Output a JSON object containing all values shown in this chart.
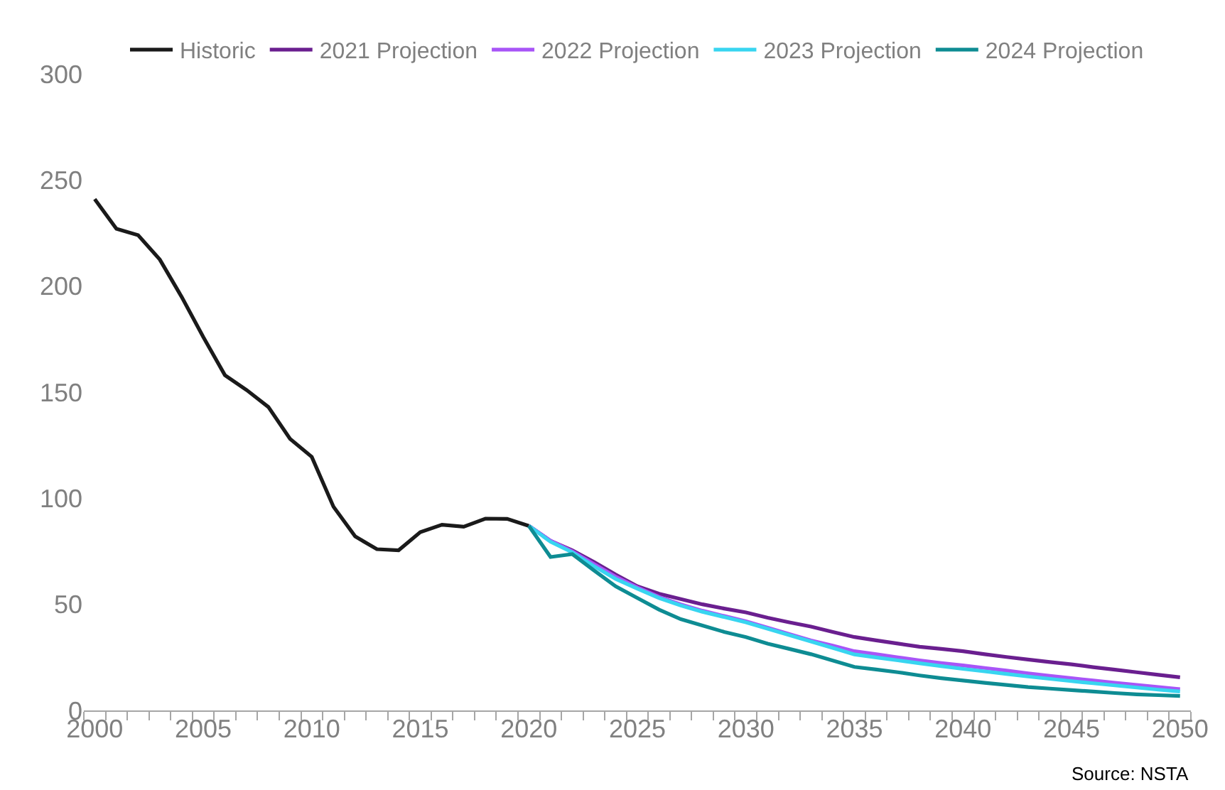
{
  "chart_data": {
    "type": "line",
    "series": [
      {
        "name": "Historic",
        "color": "#1a1a1a",
        "x": [
          2000,
          2001,
          2002,
          2003,
          2004,
          2005,
          2006,
          2007,
          2008,
          2009,
          2010,
          2011,
          2012,
          2013,
          2014,
          2015,
          2016,
          2017,
          2018,
          2019,
          2020
        ],
        "values": [
          241,
          227,
          224,
          212.5,
          195,
          176,
          158,
          151,
          143,
          128,
          119.5,
          96,
          82,
          76,
          75.5,
          84,
          87.5,
          86.6,
          90.4,
          90.3,
          87
        ]
      },
      {
        "name": "2021 Projection",
        "color": "#6a1f8f",
        "x": [
          2020,
          2021,
          2022,
          2023,
          2024,
          2025,
          2026,
          2027,
          2028,
          2029,
          2030,
          2031,
          2032,
          2033,
          2034,
          2035,
          2036,
          2037,
          2038,
          2039,
          2040,
          2041,
          2042,
          2043,
          2044,
          2045,
          2046,
          2047,
          2048,
          2049,
          2050
        ],
        "values": [
          87,
          79.9,
          75.5,
          70,
          64,
          58.5,
          55,
          52.5,
          50,
          48,
          46.2,
          43.7,
          41.5,
          39.5,
          37,
          34.6,
          33,
          31.5,
          30,
          29,
          27.9,
          26.5,
          25.2,
          24,
          22.8,
          21.7,
          20.4,
          19.2,
          18,
          16.8,
          15.6
        ]
      },
      {
        "name": "2022 Projection",
        "color": "#a855f7",
        "x": [
          2020,
          2021,
          2022,
          2023,
          2024,
          2025,
          2026,
          2027,
          2028,
          2029,
          2030,
          2031,
          2032,
          2033,
          2034,
          2035,
          2036,
          2037,
          2038,
          2039,
          2040,
          2041,
          2042,
          2043,
          2044,
          2045,
          2046,
          2047,
          2048,
          2049,
          2050
        ],
        "values": [
          87,
          80,
          75,
          69,
          63,
          58,
          53.5,
          50,
          47,
          44.5,
          42,
          39,
          36,
          33,
          30.5,
          27.9,
          26.5,
          25,
          23.6,
          22.3,
          21.2,
          20,
          18.8,
          17.5,
          16.3,
          15.2,
          14.1,
          13,
          12,
          11,
          10
        ]
      },
      {
        "name": "2023 Projection",
        "color": "#38d5f0",
        "x": [
          2020,
          2021,
          2022,
          2023,
          2024,
          2025,
          2026,
          2027,
          2028,
          2029,
          2030,
          2031,
          2032,
          2033,
          2034,
          2035,
          2036,
          2037,
          2038,
          2039,
          2040,
          2041,
          2042,
          2043,
          2044,
          2045,
          2046,
          2047,
          2048,
          2049,
          2050
        ],
        "values": [
          87,
          79.5,
          74.5,
          68,
          62,
          57.4,
          53,
          49.5,
          46.5,
          44,
          41.5,
          38.5,
          35.5,
          32.5,
          29.5,
          26.4,
          25,
          23.6,
          22.2,
          20.9,
          19.6,
          18.4,
          17.2,
          16,
          14.9,
          13.8,
          12.8,
          11.8,
          10.8,
          9.8,
          8.9
        ]
      },
      {
        "name": "2024 Projection",
        "color": "#0e8c93",
        "x": [
          2020,
          2021,
          2022,
          2023,
          2024,
          2025,
          2026,
          2027,
          2028,
          2029,
          2030,
          2031,
          2032,
          2033,
          2034,
          2035,
          2036,
          2037,
          2038,
          2039,
          2040,
          2041,
          2042,
          2043,
          2044,
          2045,
          2046,
          2047,
          2048,
          2049,
          2050
        ],
        "values": [
          87,
          72.3,
          73.7,
          66,
          58.5,
          53,
          47.5,
          43,
          40,
          37,
          34.6,
          31.5,
          29,
          26.5,
          23.5,
          20.5,
          19.3,
          18,
          16.5,
          15.2,
          14.1,
          13,
          12,
          11,
          10.3,
          9.6,
          8.9,
          8.2,
          7.6,
          7.2,
          6.8
        ]
      }
    ],
    "xlim": [
      1999.5,
      2050.5
    ],
    "xticks": [
      2000,
      2005,
      2010,
      2015,
      2020,
      2025,
      2030,
      2035,
      2040,
      2045,
      2050,
      {
        "value": 1999.5,
        "label": null
      },
      {
        "value": 2000.5,
        "label": null
      },
      {
        "value": 2001.5,
        "label": null
      },
      {
        "value": 2002.5,
        "label": null
      },
      {
        "value": 2003.5,
        "label": null
      },
      {
        "value": 2004.5,
        "label": null
      },
      {
        "value": 2005.5,
        "label": null
      },
      {
        "value": 2006.5,
        "label": null
      },
      {
        "value": 2007.5,
        "label": null
      },
      {
        "value": 2008.5,
        "label": null
      },
      {
        "value": 2009.5,
        "label": null
      },
      {
        "value": 2010.5,
        "label": null
      },
      {
        "value": 2011.5,
        "label": null
      },
      {
        "value": 2012.5,
        "label": null
      },
      {
        "value": 2013.5,
        "label": null
      },
      {
        "value": 2014.5,
        "label": null
      },
      {
        "value": 2015.5,
        "label": null
      },
      {
        "value": 2016.5,
        "label": null
      },
      {
        "value": 2017.5,
        "label": null
      },
      {
        "value": 2018.5,
        "label": null
      },
      {
        "value": 2019.5,
        "label": null
      },
      {
        "value": 2020.5,
        "label": null
      },
      {
        "value": 2021.5,
        "label": null
      },
      {
        "value": 2022.5,
        "label": null
      },
      {
        "value": 2023.5,
        "label": null
      },
      {
        "value": 2024.5,
        "label": null
      },
      {
        "value": 2025.5,
        "label": null
      },
      {
        "value": 2026.5,
        "label": null
      },
      {
        "value": 2027.5,
        "label": null
      },
      {
        "value": 2028.5,
        "label": null
      },
      {
        "value": 2029.5,
        "label": null
      },
      {
        "value": 2030.5,
        "label": null
      },
      {
        "value": 2031.5,
        "label": null
      },
      {
        "value": 2032.5,
        "label": null
      },
      {
        "value": 2033.5,
        "label": null
      },
      {
        "value": 2034.5,
        "label": null
      },
      {
        "value": 2035.5,
        "label": null
      },
      {
        "value": 2036.5,
        "label": null
      },
      {
        "value": 2037.5,
        "label": null
      },
      {
        "value": 2038.5,
        "label": null
      },
      {
        "value": 2039.5,
        "label": null
      },
      {
        "value": 2040.5,
        "label": null
      },
      {
        "value": 2041.5,
        "label": null
      },
      {
        "value": 2042.5,
        "label": null
      },
      {
        "value": 2043.5,
        "label": null
      },
      {
        "value": 2044.5,
        "label": null
      },
      {
        "value": 2045.5,
        "label": null
      },
      {
        "value": 2046.5,
        "label": null
      },
      {
        "value": 2047.5,
        "label": null
      },
      {
        "value": 2048.5,
        "label": null
      },
      {
        "value": 2049.5,
        "label": null
      },
      {
        "value": 2050.5,
        "label": null
      }
    ],
    "ylim": [
      0,
      300
    ],
    "yticks": [
      0,
      50,
      100,
      150,
      200,
      250,
      300
    ],
    "grid": false,
    "legend": "top",
    "marker": "none",
    "line_style": "solid",
    "annotations": [
      "Source: NSTA"
    ]
  }
}
